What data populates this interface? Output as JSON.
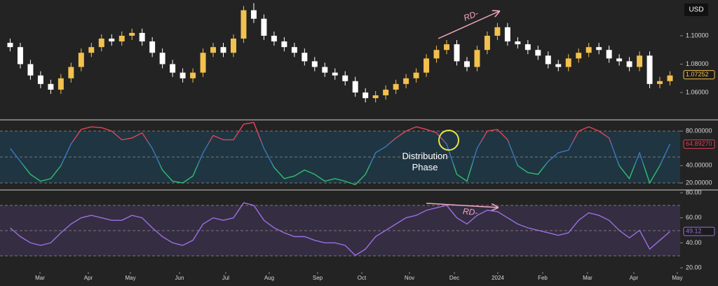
{
  "chart_data": [
    {
      "type": "candlestick",
      "unit": "USD",
      "x": [
        0,
        1,
        2,
        3,
        4,
        5,
        6,
        7,
        8,
        9,
        10,
        11,
        12,
        13,
        14,
        15,
        16,
        17,
        18,
        19,
        20,
        21,
        22,
        23,
        24,
        25,
        26,
        27,
        28,
        29,
        30,
        31,
        32,
        33,
        34,
        35,
        36,
        37,
        38,
        39,
        40,
        41,
        42,
        43,
        44,
        45,
        46,
        47,
        48,
        49,
        50,
        51,
        52,
        53,
        54,
        55,
        56,
        57,
        58,
        59,
        60,
        61,
        62,
        63,
        64,
        65
      ],
      "open": [
        1.095,
        1.092,
        1.08,
        1.072,
        1.066,
        1.062,
        1.07,
        1.078,
        1.088,
        1.092,
        1.098,
        1.096,
        1.1,
        1.102,
        1.096,
        1.088,
        1.08,
        1.074,
        1.07,
        1.074,
        1.088,
        1.092,
        1.088,
        1.098,
        1.118,
        1.112,
        1.1,
        1.096,
        1.092,
        1.088,
        1.082,
        1.078,
        1.074,
        1.072,
        1.068,
        1.06,
        1.056,
        1.058,
        1.062,
        1.066,
        1.07,
        1.074,
        1.084,
        1.09,
        1.094,
        1.082,
        1.078,
        1.09,
        1.1,
        1.106,
        1.096,
        1.094,
        1.09,
        1.086,
        1.08,
        1.078,
        1.084,
        1.088,
        1.092,
        1.09,
        1.084,
        1.082,
        1.078,
        1.086,
        1.066,
        1.068
      ],
      "high": [
        1.098,
        1.095,
        1.083,
        1.075,
        1.069,
        1.073,
        1.081,
        1.091,
        1.095,
        1.101,
        1.101,
        1.103,
        1.105,
        1.105,
        1.099,
        1.091,
        1.083,
        1.077,
        1.077,
        1.091,
        1.095,
        1.095,
        1.101,
        1.121,
        1.123,
        1.115,
        1.103,
        1.099,
        1.095,
        1.091,
        1.085,
        1.081,
        1.077,
        1.075,
        1.071,
        1.063,
        1.061,
        1.065,
        1.069,
        1.073,
        1.077,
        1.087,
        1.093,
        1.097,
        1.097,
        1.085,
        1.093,
        1.103,
        1.109,
        1.109,
        1.099,
        1.097,
        1.093,
        1.089,
        1.083,
        1.087,
        1.091,
        1.095,
        1.095,
        1.093,
        1.087,
        1.085,
        1.089,
        1.089,
        1.071,
        1.075
      ],
      "low": [
        1.089,
        1.077,
        1.069,
        1.063,
        1.059,
        1.059,
        1.067,
        1.075,
        1.085,
        1.089,
        1.093,
        1.093,
        1.097,
        1.093,
        1.085,
        1.077,
        1.071,
        1.067,
        1.067,
        1.071,
        1.085,
        1.085,
        1.085,
        1.095,
        1.109,
        1.097,
        1.093,
        1.089,
        1.085,
        1.079,
        1.075,
        1.071,
        1.069,
        1.065,
        1.057,
        1.053,
        1.053,
        1.055,
        1.059,
        1.063,
        1.067,
        1.071,
        1.081,
        1.087,
        1.079,
        1.075,
        1.075,
        1.087,
        1.097,
        1.093,
        1.091,
        1.087,
        1.083,
        1.077,
        1.075,
        1.075,
        1.081,
        1.085,
        1.087,
        1.081,
        1.079,
        1.075,
        1.075,
        1.063,
        1.063,
        1.065
      ],
      "close": [
        1.092,
        1.08,
        1.072,
        1.066,
        1.062,
        1.07,
        1.078,
        1.088,
        1.092,
        1.098,
        1.096,
        1.1,
        1.102,
        1.096,
        1.088,
        1.08,
        1.074,
        1.07,
        1.074,
        1.088,
        1.092,
        1.088,
        1.098,
        1.118,
        1.112,
        1.1,
        1.096,
        1.092,
        1.088,
        1.082,
        1.078,
        1.074,
        1.072,
        1.068,
        1.06,
        1.056,
        1.058,
        1.062,
        1.066,
        1.07,
        1.074,
        1.084,
        1.09,
        1.094,
        1.082,
        1.078,
        1.09,
        1.1,
        1.106,
        1.096,
        1.094,
        1.09,
        1.086,
        1.08,
        1.078,
        1.084,
        1.088,
        1.092,
        1.09,
        1.084,
        1.082,
        1.078,
        1.086,
        1.066,
        1.068,
        1.072
      ],
      "up_color": "#f2c14e",
      "down_color": "#ffffff",
      "xlim": [
        -1,
        66
      ],
      "ylim": [
        1.0412,
        1.1252
      ],
      "yticks": [
        {
          "value": 1.06,
          "label": "1.06000"
        },
        {
          "value": 1.08,
          "label": "1.08000"
        },
        {
          "value": 1.1,
          "label": "1.10000"
        }
      ],
      "last_value": 1.07252,
      "annotation": "RD-"
    },
    {
      "type": "line",
      "x": [
        0,
        1,
        2,
        3,
        4,
        5,
        6,
        7,
        8,
        9,
        10,
        11,
        12,
        13,
        14,
        15,
        16,
        17,
        18,
        19,
        20,
        21,
        22,
        23,
        24,
        25,
        26,
        27,
        28,
        29,
        30,
        31,
        32,
        33,
        34,
        35,
        36,
        37,
        38,
        39,
        40,
        41,
        42,
        43,
        44,
        45,
        46,
        47,
        48,
        49,
        50,
        51,
        52,
        53,
        54,
        55,
        56,
        57,
        58,
        59,
        60,
        61,
        62,
        63,
        64,
        65
      ],
      "values": [
        60,
        45,
        30,
        22,
        25,
        40,
        65,
        82,
        85,
        84,
        80,
        70,
        72,
        78,
        60,
        35,
        22,
        20,
        28,
        55,
        75,
        70,
        70,
        88,
        90,
        60,
        38,
        25,
        28,
        35,
        30,
        22,
        25,
        22,
        18,
        30,
        55,
        62,
        72,
        80,
        85,
        82,
        78,
        65,
        30,
        22,
        60,
        80,
        82,
        70,
        40,
        32,
        30,
        45,
        55,
        58,
        80,
        85,
        80,
        72,
        40,
        25,
        55,
        20,
        40,
        65
      ],
      "colors": [
        "#e0445a",
        "#3a78c0",
        "#2fbf71"
      ],
      "xlim": [
        -1,
        66
      ],
      "ylim": [
        12.7,
        92.2
      ],
      "yticks": [
        {
          "value": 20,
          "label": "20.00000"
        },
        {
          "value": 40,
          "label": "40.00000"
        },
        {
          "value": 80,
          "label": "80.00000"
        }
      ],
      "last_value": {
        "value": 64.8927,
        "label": "64.89270"
      },
      "annotation": "Distribution Phase"
    },
    {
      "type": "line",
      "x": [
        0,
        1,
        2,
        3,
        4,
        5,
        6,
        7,
        8,
        9,
        10,
        11,
        12,
        13,
        14,
        15,
        16,
        17,
        18,
        19,
        20,
        21,
        22,
        23,
        24,
        25,
        26,
        27,
        28,
        29,
        30,
        31,
        32,
        33,
        34,
        35,
        36,
        37,
        38,
        39,
        40,
        41,
        42,
        43,
        44,
        45,
        46,
        47,
        48,
        49,
        50,
        51,
        52,
        53,
        54,
        55,
        56,
        57,
        58,
        59,
        60,
        61,
        62,
        63,
        64,
        65
      ],
      "values": [
        52,
        45,
        40,
        38,
        40,
        48,
        55,
        60,
        62,
        60,
        58,
        58,
        62,
        60,
        52,
        45,
        40,
        38,
        42,
        55,
        60,
        58,
        60,
        72,
        70,
        58,
        52,
        48,
        45,
        45,
        42,
        40,
        40,
        38,
        30,
        35,
        45,
        50,
        55,
        60,
        62,
        66,
        68,
        70,
        60,
        55,
        62,
        66,
        65,
        60,
        55,
        52,
        50,
        48,
        46,
        48,
        58,
        64,
        62,
        58,
        50,
        44,
        50,
        35,
        42,
        49
      ],
      "color": "#9b6fe0",
      "xlim": [
        -1,
        66
      ],
      "ylim": [
        16.7,
        81.7
      ],
      "yticks": [
        {
          "value": 20,
          "label": "20.00"
        },
        {
          "value": 40,
          "label": "40.00"
        },
        {
          "value": 60,
          "label": "60.00"
        },
        {
          "value": 80,
          "label": "80.00"
        }
      ],
      "last_value": 49.12,
      "annotation": "RD-",
      "xticks": [
        {
          "value": 2.94,
          "label": "Mar"
        },
        {
          "value": 7.7,
          "label": "Apr"
        },
        {
          "value": 11.85,
          "label": "May"
        },
        {
          "value": 16.68,
          "label": "Jun"
        },
        {
          "value": 21.24,
          "label": "Jul"
        },
        {
          "value": 25.52,
          "label": "Aug"
        },
        {
          "value": 30.29,
          "label": "Sep"
        },
        {
          "value": 34.64,
          "label": "Oct"
        },
        {
          "value": 39.34,
          "label": "Nov"
        },
        {
          "value": 43.76,
          "label": "Dec"
        },
        {
          "value": 48.04,
          "label": "2024"
        },
        {
          "value": 52.46,
          "label": "Feb"
        },
        {
          "value": 56.88,
          "label": "Mar"
        },
        {
          "value": 61.44,
          "label": "Apr"
        },
        {
          "value": 65.72,
          "label": "May"
        }
      ]
    }
  ]
}
